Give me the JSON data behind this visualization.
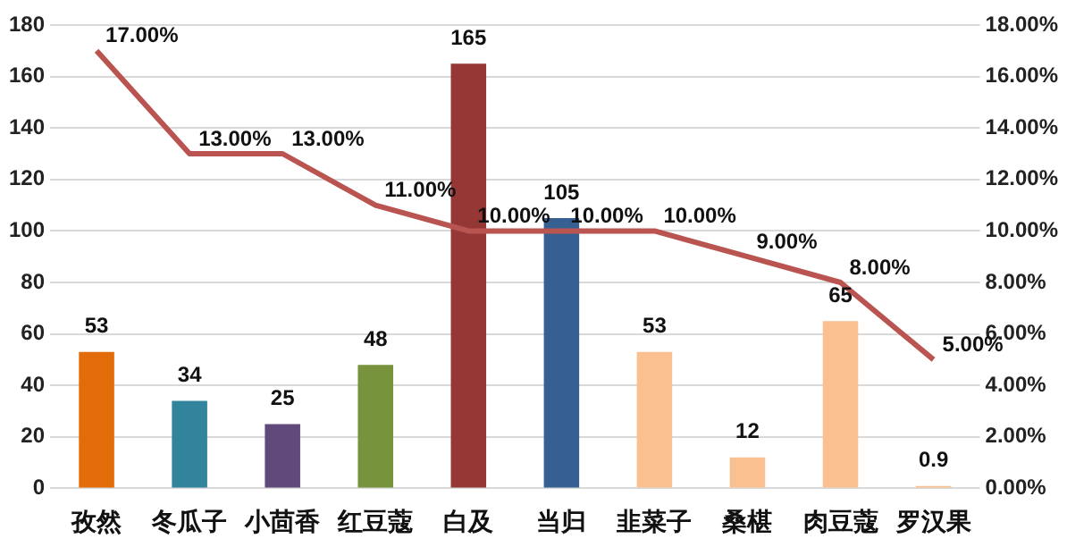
{
  "chart_data": {
    "type": "bar",
    "categories": [
      "孜然",
      "冬瓜子",
      "小茴香",
      "红豆蔻",
      "白及",
      "当归",
      "韭菜子",
      "桑椹",
      "肉豆蔻",
      "罗汉果"
    ],
    "series": [
      {
        "colors": [
          "#e36c0a",
          "#31849b",
          "#604a7b",
          "#77933c",
          "#953735",
          "#376092",
          "#fac090",
          "#fac090",
          "#fac090",
          "#fac090"
        ],
        "values": [
          53,
          34,
          25,
          48,
          165,
          105,
          53,
          12,
          65,
          0.9
        ],
        "value_labels": [
          "53",
          "34",
          "25",
          "48",
          "165",
          "105",
          "53",
          "12",
          "65",
          "0.9"
        ]
      },
      {
        "type": "line",
        "axis": "y2",
        "color": "#b95450",
        "values": [
          17,
          13,
          13,
          11,
          10,
          10,
          10,
          9,
          8,
          5
        ],
        "value_labels": [
          "17.00%",
          "13.00%",
          "13.00%",
          "11.00%",
          "10.00%",
          "10.00%",
          "10.00%",
          "9.00%",
          "8.00%",
          "5.00%"
        ]
      }
    ],
    "ylim": [
      0,
      180
    ],
    "yticks": [
      0,
      20,
      40,
      60,
      80,
      100,
      120,
      140,
      160,
      180
    ],
    "y2lim": [
      0,
      18
    ],
    "y2ticks": [
      {
        "value": 0,
        "label": "0.00%"
      },
      {
        "value": 2,
        "label": "2.00%"
      },
      {
        "value": 4,
        "label": "4.00%"
      },
      {
        "value": 6,
        "label": "6.00%"
      },
      {
        "value": 8,
        "label": "8.00%"
      },
      {
        "value": 10,
        "label": "10.00%"
      },
      {
        "value": 12,
        "label": "12.00%"
      },
      {
        "value": 14,
        "label": "14.00%"
      },
      {
        "value": 16,
        "label": "16.00%"
      },
      {
        "value": 18,
        "label": "18.00%"
      }
    ],
    "grid": "y",
    "legend": false,
    "marker": "none"
  }
}
